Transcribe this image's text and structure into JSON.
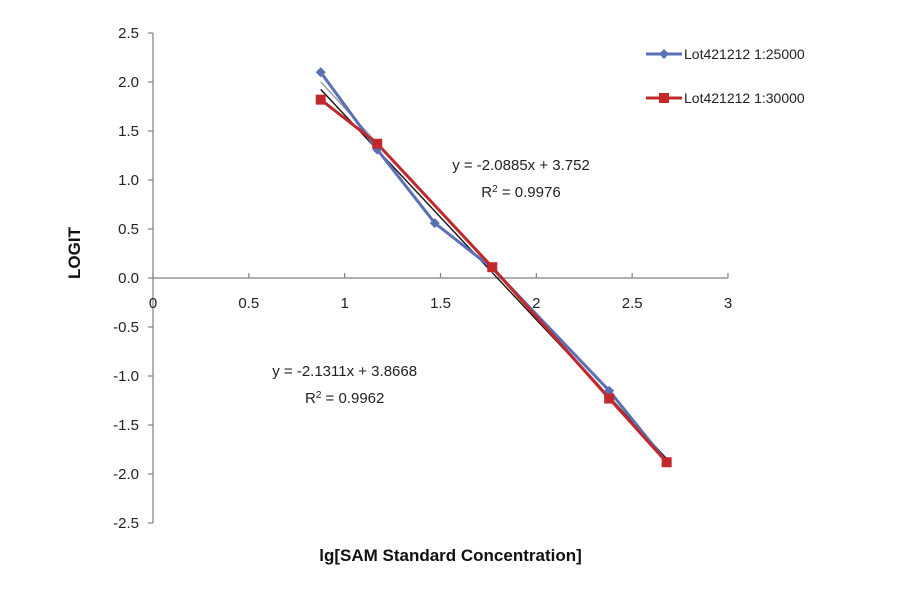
{
  "chart_data": {
    "type": "line",
    "title": "",
    "xlabel": "lg[SAM Standard Concentration]",
    "ylabel": "LOGIT",
    "xlim": [
      0,
      3
    ],
    "ylim": [
      -2.5,
      2.5
    ],
    "x_ticks": [
      "0",
      "0.5",
      "1",
      "1.5",
      "2",
      "2.5",
      "3"
    ],
    "y_ticks": [
      "2.5",
      "2.0",
      "1.5",
      "1.0",
      "0.5",
      "0.0",
      "-0.5",
      "-1.0",
      "-1.5",
      "-2.0",
      "-2.5"
    ],
    "grid": false,
    "legend_position": "top-right",
    "series": [
      {
        "name": "Lot421212  1:25000",
        "color": "#5a6fb5",
        "marker": "diamond",
        "points": [
          [
            0.875,
            2.1
          ],
          [
            1.17,
            1.31
          ],
          [
            1.47,
            0.56
          ],
          [
            1.77,
            0.1
          ],
          [
            2.38,
            -1.15
          ],
          [
            2.68,
            -1.88
          ]
        ]
      },
      {
        "name": "Lot421212  1:30000",
        "color": "#c0282b",
        "marker": "square",
        "points": [
          [
            0.875,
            1.82
          ],
          [
            1.17,
            1.37
          ],
          [
            1.77,
            0.11
          ],
          [
            2.38,
            -1.23
          ],
          [
            2.68,
            -1.88
          ]
        ]
      }
    ],
    "trendlines": [
      {
        "series": "Lot421212  1:25000",
        "slope": -2.1311,
        "intercept": 3.8668,
        "x_range": [
          0.875,
          2.68
        ],
        "color": "#9a9a9a"
      },
      {
        "series": "Lot421212  1:30000",
        "slope": -2.0885,
        "intercept": 3.752,
        "x_range": [
          0.875,
          2.68
        ],
        "color": "#111111"
      }
    ],
    "annotations": [
      {
        "equation": "y = -2.0885x + 3.752",
        "r2_prefix": "R",
        "r2_sup": "2",
        "r2_value": " = 0.9976",
        "anchor_x": 1.92,
        "anchor_y": 1.1
      },
      {
        "equation": "y = -2.1311x + 3.8668",
        "r2_prefix": "R",
        "r2_sup": "2",
        "r2_value": " = 0.9962",
        "anchor_x": 1.0,
        "anchor_y": -1.0
      }
    ]
  }
}
